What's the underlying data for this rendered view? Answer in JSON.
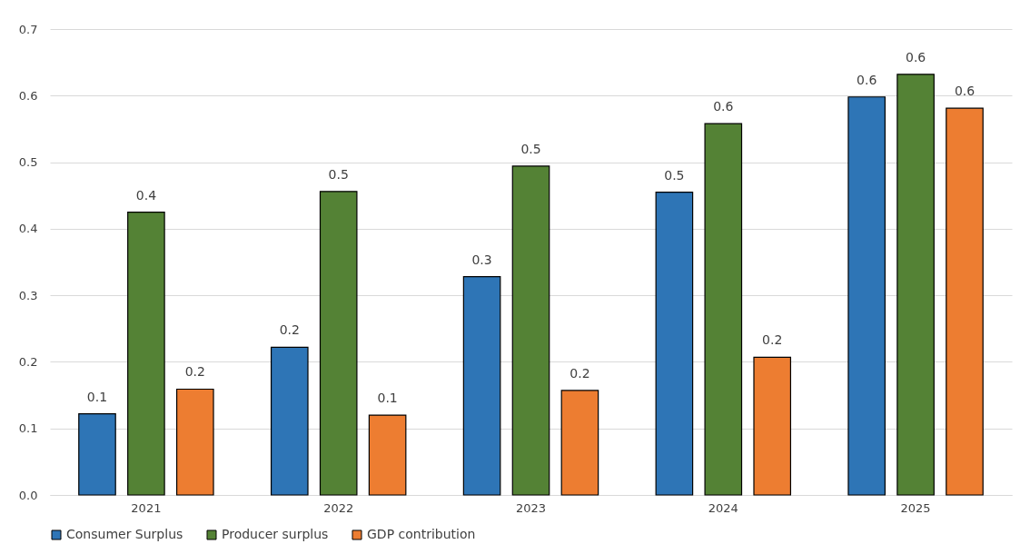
{
  "chart_data": {
    "type": "bar",
    "categories": [
      "2021",
      "2022",
      "2023",
      "2024",
      "2025"
    ],
    "series": [
      {
        "name": "Consumer Surplus",
        "color": "#2e75b6",
        "values": [
          0.122,
          0.222,
          0.328,
          0.455,
          0.598
        ],
        "value_labels": [
          "0.1",
          "0.2",
          "0.3",
          "0.5",
          "0.6"
        ]
      },
      {
        "name": "Producer surplus",
        "color": "#548235",
        "values": [
          0.425,
          0.456,
          0.494,
          0.558,
          0.632
        ],
        "value_labels": [
          "0.4",
          "0.5",
          "0.5",
          "0.6",
          "0.6"
        ]
      },
      {
        "name": "GDP contribution",
        "color": "#ed7d31",
        "values": [
          0.159,
          0.12,
          0.157,
          0.207,
          0.581
        ],
        "value_labels": [
          "0.2",
          "0.1",
          "0.2",
          "0.2",
          "0.6"
        ]
      }
    ],
    "ylim": [
      0,
      0.7
    ],
    "yticks": [
      {
        "value": 0,
        "label": "0.0"
      },
      0.1,
      0.2,
      0.3,
      0.4,
      0.5,
      0.6,
      0.7
    ],
    "grid": "y",
    "legend": "bottom"
  }
}
